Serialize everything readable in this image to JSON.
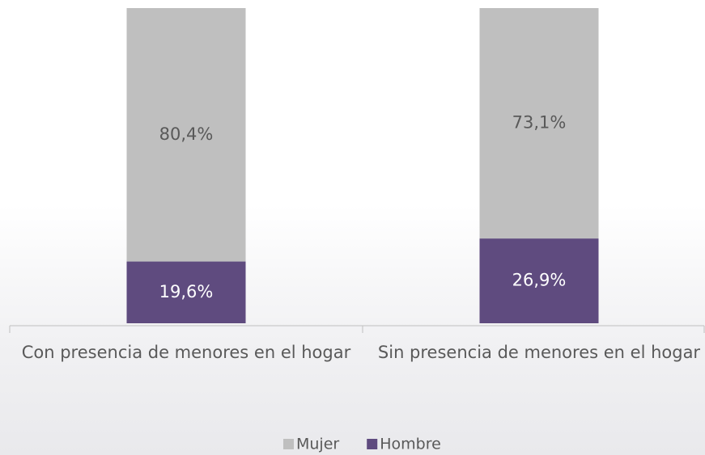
{
  "chart_data": {
    "type": "stacked_bar",
    "categories": [
      "Con presencia de menores en el hogar",
      "Sin presencia de menores en el hogar"
    ],
    "series": [
      {
        "name": "Hombre",
        "color": "#5f4b7f",
        "values": [
          19.6,
          26.9
        ],
        "value_labels": [
          "19,6%",
          "26,9%"
        ]
      },
      {
        "name": "Mujer",
        "color": "#bfbfbf",
        "values": [
          80.4,
          73.1
        ],
        "value_labels": [
          "80,4%",
          "73,1%"
        ]
      }
    ],
    "ylim": [
      0,
      100
    ],
    "legend": "bottom"
  }
}
